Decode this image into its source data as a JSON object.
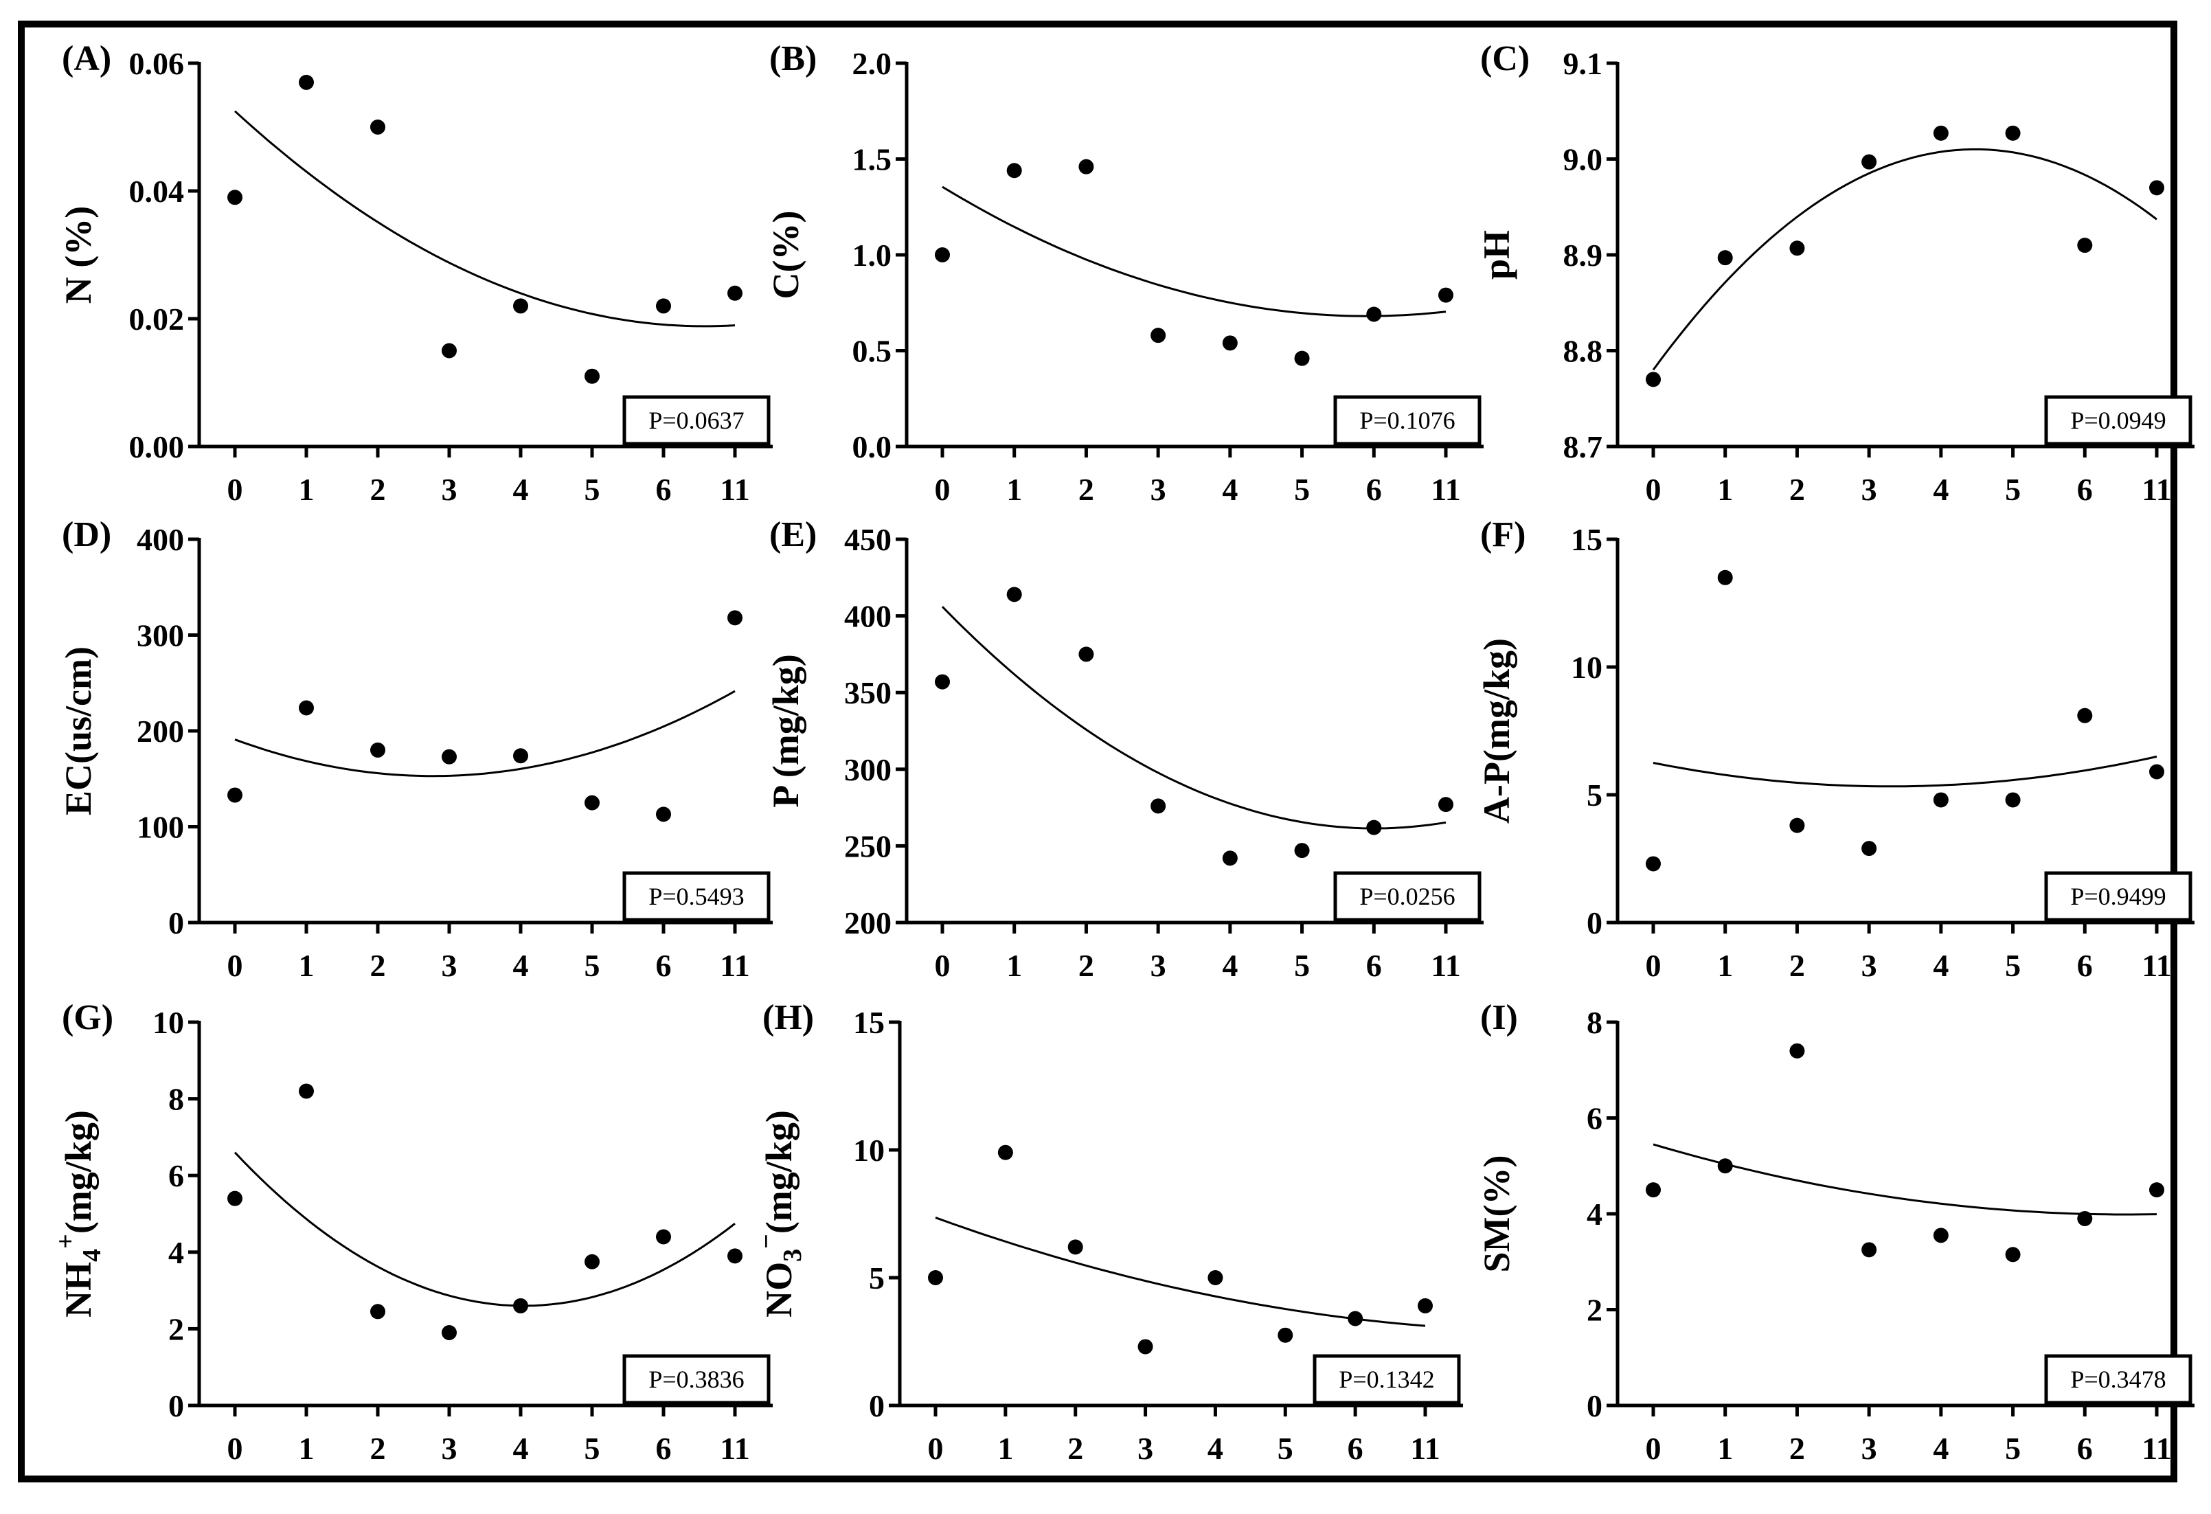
{
  "chart_data": [
    {
      "panel": "(A)",
      "type": "scatter",
      "ylabel": "N (%)",
      "ylabel_sub": "",
      "ylabel_sup": "",
      "ylabel_rest": "",
      "categories": [
        "0",
        "1",
        "2",
        "3",
        "4",
        "5",
        "6",
        "11"
      ],
      "values": [
        0.039,
        0.057,
        0.05,
        0.015,
        0.022,
        0.011,
        0.022,
        0.024
      ],
      "ylim": [
        0,
        0.06
      ],
      "yticks": [
        0,
        0.02,
        0.04,
        0.06
      ],
      "ytick_labels": [
        "0.00",
        "0.02",
        "0.04",
        "0.06"
      ],
      "fit": [
        0.0525,
        -0.01025,
        0.00078
      ],
      "p_value": "P=0.0637"
    },
    {
      "panel": "(B)",
      "type": "scatter",
      "ylabel": "C(%)",
      "ylabel_sub": "",
      "ylabel_sup": "",
      "ylabel_rest": "",
      "categories": [
        "0",
        "1",
        "2",
        "3",
        "4",
        "5",
        "6",
        "11"
      ],
      "values": [
        1.0,
        1.44,
        1.46,
        0.58,
        0.54,
        0.46,
        0.69,
        0.79
      ],
      "ylim": [
        0,
        2.0
      ],
      "yticks": [
        0,
        0.5,
        1.0,
        1.5,
        2.0
      ],
      "ytick_labels": [
        "0.0",
        "0.5",
        "1.0",
        "1.5",
        "2.0"
      ],
      "fit": [
        1.355,
        -0.2285,
        0.01935
      ],
      "p_value": "P=0.1076"
    },
    {
      "panel": "(C)",
      "type": "scatter",
      "ylabel": "pH",
      "ylabel_sub": "",
      "ylabel_sup": "",
      "ylabel_rest": "",
      "categories": [
        "0",
        "1",
        "2",
        "3",
        "4",
        "5",
        "6",
        "11"
      ],
      "values": [
        8.77,
        8.897,
        8.907,
        8.997,
        9.027,
        9.027,
        8.91,
        8.97
      ],
      "ylim": [
        8.7,
        9.1
      ],
      "yticks": [
        8.7,
        8.8,
        8.9,
        9.0,
        9.1
      ],
      "ytick_labels": [
        "8.7",
        "8.8",
        "8.9",
        "9.0",
        "9.1"
      ],
      "fit": [
        8.78,
        0.1028,
        -0.01148
      ],
      "p_value": "P=0.0949"
    },
    {
      "panel": "(D)",
      "type": "scatter",
      "ylabel": "EC(us/cm)",
      "ylabel_sub": "",
      "ylabel_sup": "",
      "ylabel_rest": "",
      "categories": [
        "0",
        "1",
        "2",
        "3",
        "4",
        "5",
        "6",
        "11"
      ],
      "values": [
        133,
        224,
        180,
        173,
        174,
        125,
        113,
        318
      ],
      "ylim": [
        0,
        400
      ],
      "yticks": [
        0,
        100,
        200,
        300,
        400
      ],
      "ytick_labels": [
        "0",
        "100",
        "200",
        "300",
        "400"
      ],
      "fit": [
        191,
        -27.5,
        4.96
      ],
      "p_value": "P=0.5493"
    },
    {
      "panel": "(E)",
      "type": "scatter",
      "ylabel": "P (mg/kg)",
      "ylabel_sub": "",
      "ylabel_sup": "",
      "ylabel_rest": "",
      "categories": [
        "0",
        "1",
        "2",
        "3",
        "4",
        "5",
        "6",
        "11"
      ],
      "values": [
        357,
        414,
        375,
        276,
        242,
        247,
        262,
        277
      ],
      "ylim": [
        200,
        450
      ],
      "yticks": [
        200,
        250,
        300,
        350,
        400,
        450
      ],
      "ytick_labels": [
        "200",
        "250",
        "300",
        "350",
        "400",
        "450"
      ],
      "fit": [
        406,
        -48.1,
        4.0
      ],
      "p_value": "P=0.0256"
    },
    {
      "panel": "(F)",
      "type": "scatter",
      "ylabel": "A-P(mg/kg)",
      "ylabel_sub": "",
      "ylabel_sup": "",
      "ylabel_rest": "",
      "categories": [
        "0",
        "1",
        "2",
        "3",
        "4",
        "5",
        "6",
        "11"
      ],
      "values": [
        2.3,
        13.5,
        3.8,
        2.9,
        4.8,
        4.8,
        8.1,
        5.9
      ],
      "ylim": [
        0,
        15
      ],
      "yticks": [
        0,
        5,
        10,
        15
      ],
      "ytick_labels": [
        "0",
        "5",
        "10",
        "15"
      ],
      "fit": [
        6.25,
        -0.56,
        0.085
      ],
      "p_value": "P=0.9499"
    },
    {
      "panel": "(G)",
      "type": "scatter",
      "ylabel": "NH",
      "ylabel_sub": "4",
      "ylabel_sup": "+",
      "ylabel_rest": "(mg/kg)",
      "categories": [
        "0",
        "1",
        "2",
        "3",
        "4",
        "5",
        "6",
        "11"
      ],
      "values": [
        5.4,
        8.2,
        2.45,
        1.9,
        2.6,
        3.75,
        4.4,
        3.9
      ],
      "ylim": [
        0,
        10
      ],
      "yticks": [
        0,
        2,
        4,
        6,
        8,
        10
      ],
      "ytick_labels": [
        "0",
        "2",
        "4",
        "6",
        "8",
        "10"
      ],
      "fit": [
        6.6,
        -1.98,
        0.245
      ],
      "p_value": "P=0.3836"
    },
    {
      "panel": "(H)",
      "type": "scatter",
      "ylabel": "NO",
      "ylabel_sub": "3",
      "ylabel_sup": "−",
      "ylabel_rest": "(mg/kg)",
      "categories": [
        "0",
        "1",
        "2",
        "3",
        "4",
        "5",
        "6",
        "11"
      ],
      "values": [
        5.0,
        9.9,
        6.2,
        2.3,
        5.0,
        2.75,
        3.4,
        3.9
      ],
      "ylim": [
        0,
        15
      ],
      "yticks": [
        0,
        5,
        10,
        15
      ],
      "ytick_labels": [
        "0",
        "5",
        "10",
        "15"
      ],
      "fit": [
        7.35,
        -0.99,
        0.055
      ],
      "p_value": "P=0.1342"
    },
    {
      "panel": "(I)",
      "type": "scatter",
      "ylabel": "SM(%)",
      "ylabel_sub": "",
      "ylabel_sup": "",
      "ylabel_rest": "",
      "categories": [
        "0",
        "1",
        "2",
        "3",
        "4",
        "5",
        "6",
        "11"
      ],
      "values": [
        4.5,
        5.0,
        7.4,
        3.25,
        3.55,
        3.15,
        3.9,
        4.5
      ],
      "ylim": [
        0,
        8
      ],
      "yticks": [
        0,
        2,
        4,
        6,
        8
      ],
      "ytick_labels": [
        "0",
        "2",
        "4",
        "6",
        "8"
      ],
      "fit": [
        5.45,
        -0.445,
        0.0338
      ],
      "p_value": "P=0.3478"
    }
  ]
}
